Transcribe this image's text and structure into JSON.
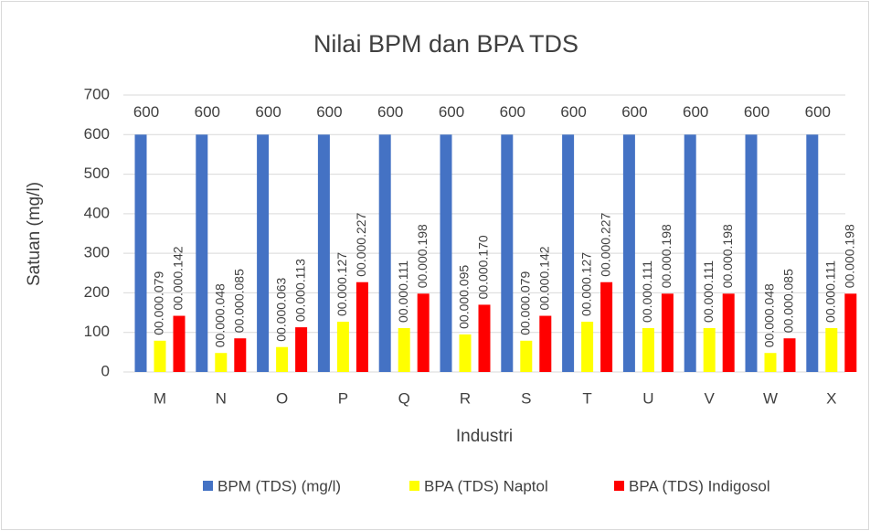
{
  "chart_data": {
    "type": "bar",
    "title": "Nilai BPM dan BPA TDS",
    "x_label": "Industri",
    "y_label": "Satuan (mg/l)",
    "categories": [
      "M",
      "N",
      "O",
      "P",
      "Q",
      "R",
      "S",
      "T",
      "U",
      "V",
      "W",
      "X"
    ],
    "series": [
      {
        "name": "BPM (TDS) (mg/l)",
        "color": "#4472c4",
        "values": [
          600,
          600,
          600,
          600,
          600,
          600,
          600,
          600,
          600,
          600,
          600,
          600
        ]
      },
      {
        "name": "BPA (TDS) Naptol",
        "color": "#ffff00",
        "values": [
          79,
          48,
          63,
          127,
          111,
          95,
          79,
          127,
          111,
          111,
          48,
          111
        ],
        "value_labels": [
          "00.000.079",
          "00.000.048",
          "00.000.063",
          "00.000.127",
          "00.000.111",
          "00.000.095",
          "00.000.079",
          "00.000.127",
          "00.000.111",
          "00.000.111",
          "00.000.048",
          "00.000.111"
        ]
      },
      {
        "name": "BPA (TDS) Indigosol",
        "color": "#ff0000",
        "values": [
          142,
          85,
          113,
          227,
          198,
          170,
          142,
          227,
          198,
          198,
          85,
          198
        ],
        "value_labels": [
          "00.000.142",
          "00.000.085",
          "00.000.113",
          "00.000.227",
          "00.000.198",
          "00.000.170",
          "00.000.142",
          "00.000.227",
          "00.000.198",
          "00.000.198",
          "00.000.085",
          "00.000.198"
        ]
      }
    ],
    "ylim": [
      0,
      700
    ],
    "yticks": [
      0,
      100,
      200,
      300,
      400,
      500,
      600,
      700
    ],
    "grid": true,
    "legend": "bottom"
  }
}
